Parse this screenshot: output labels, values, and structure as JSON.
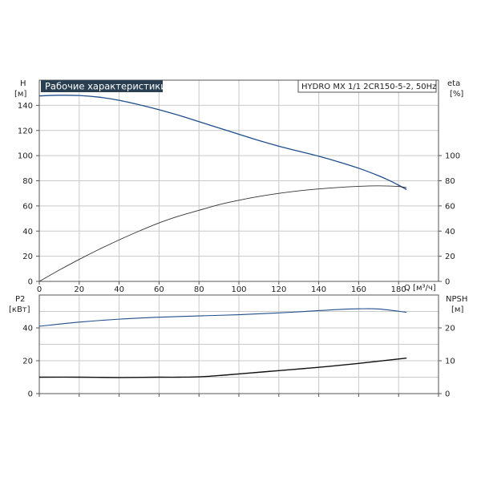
{
  "header": {
    "title": "Рабочие характеристики",
    "model": "HYDRO MX 1/1 2CR150-5-2, 50Hz"
  },
  "colors": {
    "title_bg": "#2b3f52",
    "head_curve": "#1f4e8c",
    "eta_curve": "#333333",
    "p2_curve": "#1f4e8c",
    "npsh_curve": "#111111",
    "grid": "#c9c9c9"
  },
  "chart_data": [
    {
      "type": "line",
      "panel": "top",
      "title": "Рабочие характеристики",
      "xlabel": "Q [м³/ч]",
      "x_tick_labels": [
        "0",
        "20",
        "40",
        "60",
        "80",
        "100",
        "120",
        "140",
        "160",
        "180"
      ],
      "xlim": [
        0,
        200
      ],
      "left_axis": {
        "label_top": "H",
        "label_unit": "[м]",
        "ylim": [
          0,
          160
        ],
        "tick_labels": [
          "0",
          "20",
          "40",
          "60",
          "80",
          "100",
          "120",
          "140"
        ]
      },
      "right_axis": {
        "label_top": "eta",
        "label_unit": "[%]",
        "ylim": [
          0,
          160
        ],
        "tick_labels": [
          "0",
          "20",
          "40",
          "60",
          "80",
          "100"
        ]
      },
      "grid": true,
      "legend": "none",
      "series": [
        {
          "axis": "left",
          "x": [
            0,
            10,
            20,
            30,
            40,
            50,
            60,
            70,
            80,
            90,
            100,
            110,
            120,
            130,
            140,
            150,
            160,
            170,
            175,
            180,
            184
          ],
          "y": [
            147.5,
            148,
            147.8,
            146.5,
            144,
            140.5,
            136.5,
            132,
            127,
            122,
            117,
            112,
            107.5,
            103.5,
            99.5,
            95,
            90,
            84,
            80.5,
            76.5,
            73
          ]
        },
        {
          "axis": "right",
          "x": [
            0,
            10,
            20,
            30,
            40,
            50,
            60,
            70,
            80,
            90,
            100,
            110,
            120,
            130,
            140,
            150,
            160,
            170,
            180,
            184
          ],
          "y": [
            0,
            9,
            17.5,
            25.5,
            33,
            40,
            46.5,
            52,
            56.5,
            61,
            64.5,
            67.5,
            70,
            72,
            73.5,
            74.7,
            75.6,
            76,
            75.5,
            74.5
          ]
        }
      ]
    },
    {
      "type": "line",
      "panel": "bottom",
      "xlim": [
        0,
        200
      ],
      "left_axis": {
        "label_top": "P2",
        "label_unit": "[кВт]",
        "ylim": [
          0,
          60
        ],
        "tick_labels": [
          "0",
          "20",
          "40"
        ]
      },
      "right_axis": {
        "label_top": "NPSH",
        "label_unit": "[м]",
        "ylim": [
          0,
          30
        ],
        "tick_labels": [
          "0",
          "10",
          "20"
        ]
      },
      "grid": true,
      "legend": "none",
      "series": [
        {
          "axis": "left",
          "x": [
            0,
            20,
            40,
            60,
            80,
            100,
            120,
            140,
            150,
            160,
            170,
            184
          ],
          "y": [
            41,
            43.5,
            45.3,
            46.5,
            47.3,
            48,
            49.1,
            50.5,
            51.2,
            51.6,
            51.5,
            49.5
          ]
        },
        {
          "axis": "right",
          "x": [
            0,
            20,
            40,
            60,
            70,
            80,
            90,
            100,
            120,
            140,
            160,
            184
          ],
          "y": [
            5,
            5,
            4.9,
            5,
            5,
            5.1,
            5.5,
            6,
            7,
            8,
            9.2,
            10.8
          ]
        }
      ]
    }
  ]
}
